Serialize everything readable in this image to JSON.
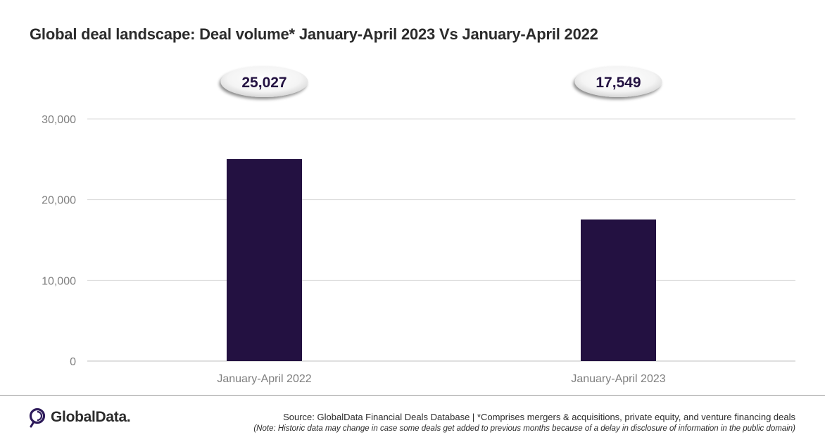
{
  "title": "Global deal landscape: Deal volume* January-April 2023 Vs January-April 2022",
  "chart_data": {
    "type": "bar",
    "categories": [
      "January-April 2022",
      "January-April 2023"
    ],
    "values": [
      25027,
      17549
    ],
    "value_labels": [
      "25,027",
      "17,549"
    ],
    "ylim": [
      0,
      30000
    ],
    "yticks": [
      0,
      10000,
      20000,
      30000
    ],
    "ytick_labels": [
      "0",
      "10,000",
      "20,000",
      "30,000"
    ],
    "xlabel": "",
    "ylabel": "",
    "grid": true,
    "legend": "none",
    "bar_color": "#231141"
  },
  "footer": {
    "logo_icon": "globaldata-logo-icon",
    "logo_text": "GlobalData.",
    "source": "Source: GlobalData Financial Deals Database | *Comprises mergers & acquisitions, private equity, and venture financing deals",
    "note": "(Note: Historic data may change in case some deals get added to previous months because of a delay in disclosure of information in the public domain)"
  },
  "colors": {
    "bar": "#231141",
    "logo_accent": "#2d1a5a",
    "gridline": "#d9d9d9",
    "tick_text": "#7f7f7f"
  }
}
